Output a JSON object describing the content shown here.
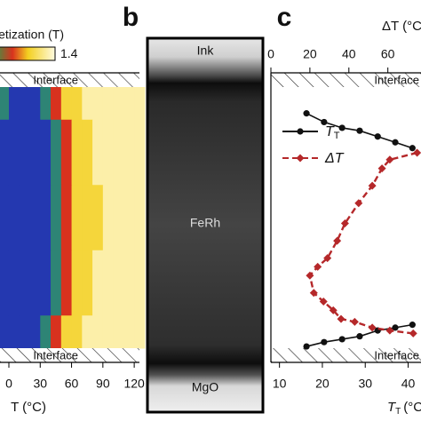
{
  "chart_data": [
    {
      "type": "heatmap",
      "colorbar_label": "Magnetization (T)",
      "clim": [
        0,
        1.4
      ],
      "cticks": [
        1.4
      ],
      "colormap": [
        [
          0,
          "#1c2190"
        ],
        [
          0.3,
          "#2c4fd0"
        ],
        [
          0.6,
          "#2f9e48"
        ],
        [
          0.85,
          "#d8321e"
        ],
        [
          1.05,
          "#f3d020"
        ],
        [
          1.4,
          "#fffbe0"
        ]
      ],
      "xlim": [
        -8.5,
        125
      ],
      "xticks": [
        0,
        30,
        60,
        90,
        120
      ],
      "xlabel": "T (°C)",
      "x_edges": [
        -10,
        0,
        10,
        20,
        30,
        40,
        50,
        60,
        70,
        80,
        90,
        100,
        110,
        120,
        130
      ],
      "z": [
        [
          0.5,
          0.15,
          0.15,
          0.15,
          0.5,
          0.85,
          1.1,
          1.1,
          1.3,
          1.3,
          1.3,
          1.3,
          1.3,
          1.3
        ],
        [
          0.15,
          0.15,
          0.15,
          0.15,
          0.15,
          0.5,
          0.85,
          1.1,
          1.1,
          1.3,
          1.3,
          1.3,
          1.3,
          1.3
        ],
        [
          0.15,
          0.15,
          0.15,
          0.15,
          0.15,
          0.5,
          0.85,
          1.1,
          1.1,
          1.3,
          1.3,
          1.3,
          1.3,
          1.3
        ],
        [
          0.15,
          0.15,
          0.15,
          0.15,
          0.15,
          0.5,
          0.85,
          1.1,
          1.1,
          1.1,
          1.3,
          1.3,
          1.3,
          1.3
        ],
        [
          0.15,
          0.15,
          0.15,
          0.15,
          0.15,
          0.5,
          0.85,
          1.1,
          1.1,
          1.1,
          1.3,
          1.3,
          1.3,
          1.3
        ],
        [
          0.15,
          0.15,
          0.15,
          0.15,
          0.15,
          0.5,
          0.85,
          1.1,
          1.1,
          1.3,
          1.3,
          1.3,
          1.3,
          1.3
        ],
        [
          0.15,
          0.15,
          0.15,
          0.15,
          0.15,
          0.5,
          0.85,
          1.1,
          1.1,
          1.3,
          1.3,
          1.3,
          1.3,
          1.3
        ],
        [
          0.15,
          0.15,
          0.15,
          0.15,
          0.5,
          0.85,
          1.1,
          1.1,
          1.3,
          1.3,
          1.3,
          1.3,
          1.3,
          1.3
        ]
      ],
      "interface_labels": [
        "Interface",
        "Interface"
      ]
    },
    {
      "type": "line",
      "panel_label": "c",
      "xlim": [
        8,
        43
      ],
      "xticks": [
        10,
        20,
        30,
        40
      ],
      "xlabel": "T",
      "xlabel_sub": "T",
      "xlabel_unit": "(°C)",
      "x2lim": [
        0,
        77
      ],
      "x2ticks": [
        0,
        20,
        40,
        60
      ],
      "x2label": "ΔT (°C)",
      "ylim": [
        0,
        100
      ],
      "legend": "upper left",
      "interface_labels": [
        "Interface",
        "Interface"
      ],
      "series": [
        {
          "name": "T",
          "name_sub": "T",
          "color": "#111111",
          "marker": "circle",
          "axis": "x",
          "x": [
            16.3,
            20.4,
            24.6,
            28.7,
            32.9,
            37,
            41,
            null,
            16.3,
            20.4,
            24.6,
            28.7,
            32.9,
            37,
            41
          ],
          "y": [
            14,
            17,
            19,
            20,
            22,
            24,
            26,
            null,
            94.5,
            93,
            92,
            91,
            89,
            88,
            87
          ]
        },
        {
          "name": "ΔT",
          "color": "#b5282a",
          "marker": "diamond",
          "axis": "x2",
          "x": [
            75,
            61,
            57,
            52,
            45,
            38,
            34,
            29,
            24,
            20,
            22,
            27,
            32,
            36,
            43,
            52,
            61,
            73
          ],
          "y": [
            27.6,
            30,
            33,
            39,
            45,
            52,
            58,
            64,
            67,
            70,
            76,
            79,
            82,
            85,
            86,
            88,
            89,
            90
          ]
        }
      ]
    }
  ],
  "panel_b": {
    "label": "b",
    "layers": [
      "Ink",
      "FeRh",
      "MgO"
    ]
  }
}
